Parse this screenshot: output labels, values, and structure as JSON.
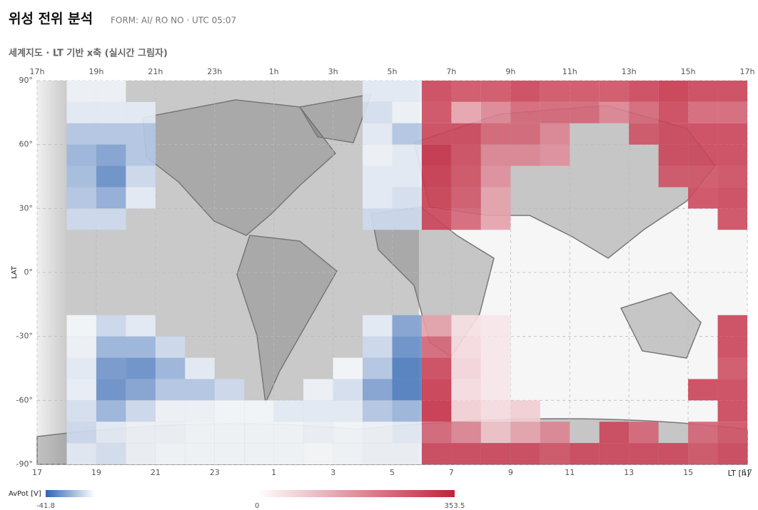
{
  "chart_data": {
    "type": "heatmap",
    "title": "위성 전위 분석",
    "subtitle": "FORM: AI/ RO NO · UTC 05:07",
    "section_title": "세계지도 · LT 기반 x축 (실시간 그림자)",
    "xlabel": "LT [h]",
    "ylabel": "LAT",
    "xlim": [
      17,
      41
    ],
    "ylim": [
      -90,
      90
    ],
    "xticks": [
      {
        "value": 17,
        "label": "17"
      },
      {
        "value": 19,
        "label": "19"
      },
      {
        "value": 21,
        "label": "21"
      },
      {
        "value": 23,
        "label": "23"
      },
      {
        "value": 25,
        "label": "1"
      },
      {
        "value": 27,
        "label": "3"
      },
      {
        "value": 29,
        "label": "5"
      },
      {
        "value": 31,
        "label": "7"
      },
      {
        "value": 33,
        "label": "9"
      },
      {
        "value": 35,
        "label": "11"
      },
      {
        "value": 37,
        "label": "13"
      },
      {
        "value": 39,
        "label": "15"
      },
      {
        "value": 41,
        "label": "17"
      }
    ],
    "xticks_top": [
      {
        "value": 17,
        "label": "17h"
      },
      {
        "value": 19,
        "label": "19h"
      },
      {
        "value": 21,
        "label": "21h"
      },
      {
        "value": 23,
        "label": "23h"
      },
      {
        "value": 25,
        "label": "1h"
      },
      {
        "value": 27,
        "label": "3h"
      },
      {
        "value": 29,
        "label": "5h"
      },
      {
        "value": 31,
        "label": "7h"
      },
      {
        "value": 33,
        "label": "9h"
      },
      {
        "value": 35,
        "label": "11h"
      },
      {
        "value": 37,
        "label": "13h"
      },
      {
        "value": 39,
        "label": "15h"
      },
      {
        "value": 41,
        "label": "17h"
      }
    ],
    "yticks": [
      {
        "value": 90,
        "label": "90°"
      },
      {
        "value": 60,
        "label": "60°"
      },
      {
        "value": 30,
        "label": "30°"
      },
      {
        "value": 0,
        "label": "0°"
      },
      {
        "value": -30,
        "label": "-30°"
      },
      {
        "value": -60,
        "label": "-60°"
      },
      {
        "value": -90,
        "label": "-90°"
      }
    ],
    "grid": true,
    "x_bins": [
      18,
      19,
      20,
      21,
      22,
      23,
      24,
      25,
      26,
      27,
      28,
      29,
      30,
      31,
      32,
      33,
      34,
      35,
      36,
      37,
      38,
      39,
      40,
      41
    ],
    "y_bins": [
      90,
      80,
      70,
      60,
      50,
      40,
      30,
      20,
      10,
      0,
      -10,
      -20,
      -30,
      -40,
      -50,
      -60,
      -70,
      -80,
      -90
    ],
    "values": [
      [
        -3,
        -5,
        -15,
        -20,
        -18,
        -15,
        -10,
        null,
        null,
        null,
        null,
        -2,
        -3,
        -5,
        -4,
        -8,
        -10,
        -5
      ],
      [
        -3,
        -5,
        -15,
        -25,
        -30,
        -22,
        -10,
        null,
        null,
        null,
        null,
        -10,
        -20,
        -28,
        -30,
        -20,
        -5,
        -8
      ],
      [
        null,
        -5,
        -15,
        -15,
        -10,
        -5,
        null,
        null,
        null,
        null,
        null,
        -5,
        -20,
        -30,
        -25,
        -10,
        -3,
        -3
      ],
      [
        null,
        null,
        null,
        null,
        null,
        null,
        null,
        null,
        null,
        null,
        null,
        null,
        -10,
        -20,
        -15,
        -3,
        -3,
        -2
      ],
      [
        null,
        null,
        null,
        null,
        null,
        null,
        null,
        null,
        null,
        null,
        null,
        null,
        null,
        -5,
        -15,
        -3,
        -2,
        -2
      ],
      [
        null,
        null,
        null,
        null,
        null,
        null,
        null,
        null,
        null,
        null,
        null,
        null,
        null,
        null,
        -10,
        -2,
        -2,
        -2
      ],
      [
        null,
        null,
        null,
        null,
        null,
        null,
        null,
        null,
        null,
        null,
        null,
        null,
        null,
        null,
        null,
        -2,
        -2,
        -2
      ],
      [
        null,
        null,
        null,
        null,
        null,
        null,
        null,
        null,
        null,
        null,
        null,
        null,
        null,
        null,
        null,
        -5,
        -2,
        -2
      ],
      [
        null,
        null,
        null,
        null,
        null,
        null,
        null,
        null,
        null,
        null,
        null,
        null,
        null,
        null,
        -3,
        -5,
        -3,
        -1
      ],
      [
        null,
        null,
        null,
        null,
        null,
        null,
        null,
        null,
        null,
        null,
        null,
        null,
        null,
        -2,
        -8,
        -5,
        -2,
        -2
      ],
      [
        -5,
        -8,
        -5,
        -3,
        -5,
        -5,
        -10,
        null,
        null,
        null,
        null,
        -5,
        -10,
        -15,
        -25,
        -15,
        -3,
        -3
      ],
      [
        -5,
        -3,
        -15,
        -5,
        -5,
        -8,
        -10,
        null,
        null,
        null,
        null,
        -25,
        -30,
        -35,
        -35,
        -20,
        -5,
        -3
      ],
      [
        300,
        290,
        300,
        330,
        320,
        310,
        300,
        null,
        null,
        null,
        null,
        150,
        250,
        300,
        320,
        330,
        250,
        300
      ],
      [
        280,
        150,
        300,
        290,
        280,
        270,
        250,
        null,
        null,
        null,
        null,
        50,
        60,
        70,
        60,
        80,
        200,
        300
      ],
      [
        280,
        200,
        250,
        200,
        180,
        150,
        150,
        null,
        null,
        null,
        null,
        40,
        40,
        40,
        40,
        60,
        100,
        300
      ],
      [
        300,
        250,
        250,
        200,
        null,
        null,
        null,
        null,
        null,
        null,
        null,
        null,
        null,
        null,
        null,
        80,
        150,
        300
      ],
      [
        280,
        250,
        200,
        180,
        null,
        null,
        null,
        null,
        null,
        null,
        null,
        null,
        null,
        null,
        null,
        null,
        200,
        280
      ],
      [
        280,
        250,
        null,
        null,
        null,
        null,
        null,
        null,
        null,
        null,
        null,
        null,
        null,
        null,
        null,
        null,
        null,
        300
      ],
      [
        280,
        200,
        null,
        null,
        null,
        null,
        null,
        null,
        null,
        null,
        null,
        null,
        null,
        null,
        null,
        null,
        300,
        300
      ],
      [
        300,
        250,
        280,
        null,
        null,
        null,
        null,
        null,
        null,
        null,
        null,
        null,
        null,
        null,
        null,
        null,
        250,
        300
      ],
      [
        320,
        300,
        300,
        300,
        280,
        null,
        null,
        null,
        null,
        null,
        null,
        null,
        null,
        null,
        null,
        null,
        null,
        300
      ],
      [
        300,
        250,
        300,
        300,
        280,
        290,
        null,
        null,
        null,
        null,
        null,
        null,
        null,
        null,
        300,
        null,
        250,
        280
      ],
      [
        300,
        250,
        300,
        300,
        290,
        300,
        290,
        null,
        null,
        null,
        null,
        300,
        300,
        280,
        300,
        300,
        280,
        300
      ]
    ],
    "colors": {
      "negative": "#2c64b4",
      "zero": "#ffffff",
      "positive": "#c0223a"
    },
    "colorbar_label": "AvPot [V]",
    "colorbar_lim": [
      -41.8,
      353.5
    ],
    "colorbar_ticks": [
      -41.8,
      0,
      353.5
    ]
  }
}
